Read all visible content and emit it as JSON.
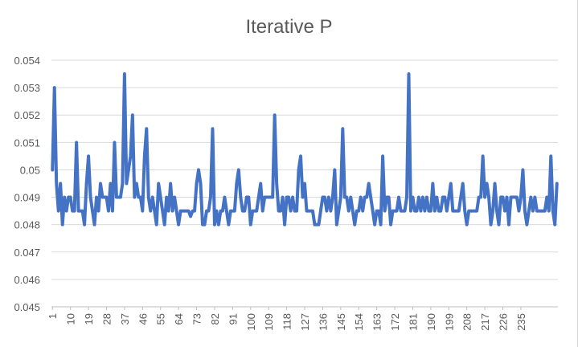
{
  "chart_data": {
    "type": "line",
    "title": "Iterative P",
    "xlabel": "",
    "ylabel": "",
    "ylim": [
      0.045,
      0.054
    ],
    "y_ticks": [
      "0.054",
      "0.053",
      "0.052",
      "0.051",
      "0.05",
      "0.049",
      "0.048",
      "0.047",
      "0.046",
      "0.045"
    ],
    "x_ticks": [
      "1",
      "10",
      "19",
      "28",
      "37",
      "46",
      "55",
      "64",
      "73",
      "82",
      "91",
      "100",
      "109",
      "118",
      "127",
      "136",
      "145",
      "154",
      "163",
      "172",
      "181",
      "190",
      "199",
      "208",
      "217",
      "226",
      "235"
    ],
    "grid": "horizontal",
    "legend": "none",
    "color": "#4472c4",
    "x_start": 1,
    "series": [
      {
        "values": [
          0.05,
          0.053,
          0.0495,
          0.0485,
          0.0495,
          0.048,
          0.049,
          0.0485,
          0.049,
          0.049,
          0.0485,
          0.0485,
          0.051,
          0.0485,
          0.0485,
          0.0485,
          0.048,
          0.0495,
          0.0505,
          0.049,
          0.0485,
          0.048,
          0.049,
          0.0485,
          0.0495,
          0.049,
          0.049,
          0.049,
          0.0485,
          0.0495,
          0.0485,
          0.051,
          0.049,
          0.049,
          0.049,
          0.0495,
          0.0535,
          0.0495,
          0.05,
          0.0505,
          0.052,
          0.049,
          0.0495,
          0.049,
          0.049,
          0.0485,
          0.0505,
          0.0515,
          0.049,
          0.0485,
          0.049,
          0.0485,
          0.048,
          0.0495,
          0.049,
          0.0485,
          0.048,
          0.049,
          0.0485,
          0.0495,
          0.0485,
          0.049,
          0.0485,
          0.048,
          0.0485,
          0.0485,
          0.0485,
          0.0485,
          0.0485,
          0.0483,
          0.0485,
          0.0485,
          0.0495,
          0.05,
          0.0495,
          0.048,
          0.048,
          0.0485,
          0.0485,
          0.049,
          0.0515,
          0.048,
          0.0485,
          0.048,
          0.0485,
          0.0485,
          0.049,
          0.0485,
          0.048,
          0.0485,
          0.0485,
          0.0485,
          0.0495,
          0.05,
          0.049,
          0.0485,
          0.0485,
          0.049,
          0.049,
          0.048,
          0.0485,
          0.0485,
          0.0485,
          0.049,
          0.0495,
          0.0485,
          0.049,
          0.049,
          0.049,
          0.049,
          0.049,
          0.052,
          0.0495,
          0.0485,
          0.0485,
          0.049,
          0.048,
          0.049,
          0.049,
          0.0485,
          0.049,
          0.0485,
          0.0485,
          0.05,
          0.0505,
          0.049,
          0.0495,
          0.0485,
          0.0485,
          0.0485,
          0.0485,
          0.048,
          0.048,
          0.048,
          0.0485,
          0.049,
          0.049,
          0.0485,
          0.049,
          0.0485,
          0.049,
          0.05,
          0.048,
          0.0485,
          0.049,
          0.0515,
          0.049,
          0.049,
          0.0485,
          0.049,
          0.0485,
          0.048,
          0.0485,
          0.0485,
          0.049,
          0.0485,
          0.049,
          0.049,
          0.0495,
          0.049,
          0.0485,
          0.048,
          0.0485,
          0.0485,
          0.048,
          0.0505,
          0.0485,
          0.049,
          0.049,
          0.048,
          0.0485,
          0.0485,
          0.0485,
          0.049,
          0.0485,
          0.0485,
          0.0485,
          0.049,
          0.0535,
          0.0485,
          0.049,
          0.0485,
          0.0485,
          0.049,
          0.0485,
          0.049,
          0.0485,
          0.049,
          0.0485,
          0.0485,
          0.0495,
          0.0485,
          0.049,
          0.0485,
          0.0485,
          0.049,
          0.049,
          0.0485,
          0.049,
          0.0495,
          0.0485,
          0.0485,
          0.0485,
          0.0485,
          0.049,
          0.0495,
          0.0485,
          0.048,
          0.0485,
          0.0485,
          0.0485,
          0.0485,
          0.0485,
          0.049,
          0.049,
          0.0505,
          0.049,
          0.0495,
          0.049,
          0.048,
          0.0485,
          0.0495,
          0.0485,
          0.048,
          0.049,
          0.049,
          0.0485,
          0.049,
          0.048,
          0.049,
          0.049,
          0.049,
          0.049,
          0.0485,
          0.049,
          0.05,
          0.0485,
          0.048,
          0.0485,
          0.049,
          0.0485,
          0.049,
          0.0485,
          0.0485,
          0.0485,
          0.0485,
          0.0485,
          0.049,
          0.0485,
          0.0505,
          0.0485,
          0.048,
          0.0495
        ]
      }
    ]
  }
}
